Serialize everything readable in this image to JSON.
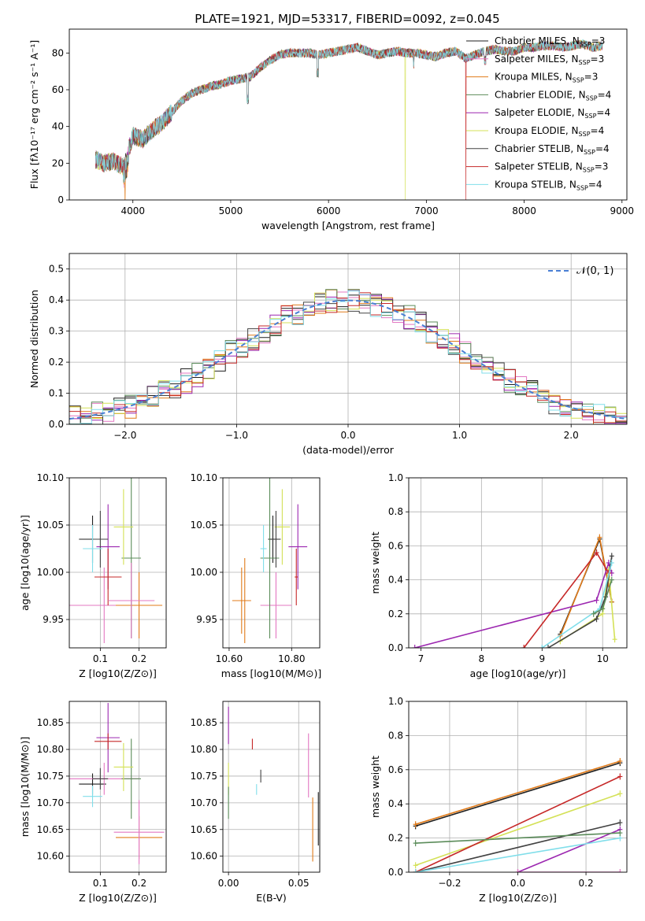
{
  "title": "PLATE=1921, MJD=53317, FIBERID=0092, z=0.045",
  "series_colors": [
    "#1f1f1f",
    "#e377c2",
    "#e07b1a",
    "#2e7d32",
    "#9c27b0",
    "#d4e157",
    "#424242",
    "#c62828",
    "#80deea"
  ],
  "legend": [
    {
      "pre": "Chabrier MILES, N",
      "sub": "SSP",
      "post": "=3",
      "color": "#1f1f1f"
    },
    {
      "pre": "Salpeter MILES, N",
      "sub": "SSP",
      "post": "=3",
      "color": "#e377c2"
    },
    {
      "pre": "Kroupa MILES, N",
      "sub": "SSP",
      "post": "=3",
      "color": "#e07b1a"
    },
    {
      "pre": "Chabrier ELODIE, N",
      "sub": "SSP",
      "post": "=4",
      "color": "#5b8c5a"
    },
    {
      "pre": "Salpeter ELODIE, N",
      "sub": "SSP",
      "post": "=4",
      "color": "#9c27b0"
    },
    {
      "pre": "Kroupa ELODIE, N",
      "sub": "SSP",
      "post": "=4",
      "color": "#d4e157"
    },
    {
      "pre": "Chabrier STELIB, N",
      "sub": "SSP",
      "post": "=4",
      "color": "#424242"
    },
    {
      "pre": "Salpeter STELIB, N",
      "sub": "SSP",
      "post": "=3",
      "color": "#c62828"
    },
    {
      "pre": "Kroupa STELIB, N",
      "sub": "SSP",
      "post": "=4",
      "color": "#80deea"
    }
  ],
  "chart_data": [
    {
      "id": "spectrum",
      "type": "line",
      "xlabel": "wavelength [Angstrom, rest frame]",
      "ylabel": "Flux [fλ10⁻¹⁷ erg cm⁻² s⁻¹ A⁻¹]",
      "xlim": [
        3350,
        9050
      ],
      "ylim": [
        0,
        93
      ],
      "xticks": [
        4000,
        5000,
        6000,
        7000,
        8000,
        9000
      ],
      "yticks": [
        0,
        20,
        40,
        60,
        80
      ],
      "x": [
        3620,
        3700,
        3800,
        3900,
        4000,
        4100,
        4200,
        4300,
        4400,
        4500,
        4600,
        4700,
        4800,
        4900,
        5000,
        5100,
        5200,
        5300,
        5400,
        5500,
        5600,
        5700,
        5800,
        5900,
        6000,
        6100,
        6200,
        6300,
        6400,
        6500,
        6600,
        6700,
        6800,
        6900,
        7000,
        7100,
        7200,
        7300,
        7400,
        7500,
        7600,
        7700,
        7800,
        7900,
        8000,
        8100,
        8200,
        8300,
        8400,
        8500,
        8600,
        8700,
        8800
      ],
      "y": [
        22,
        20,
        21,
        18,
        35,
        33,
        38,
        42,
        48,
        54,
        58,
        60,
        62,
        63,
        65,
        66,
        67,
        72,
        76,
        79,
        80,
        80,
        80,
        79,
        80,
        81,
        82,
        83,
        81,
        79,
        80,
        81,
        80,
        80,
        79,
        78,
        80,
        81,
        77,
        79,
        81,
        82,
        81,
        81,
        83,
        83,
        84,
        84,
        83,
        84,
        85,
        83,
        84
      ],
      "dips": [
        {
          "x": 3920,
          "series": "Kroupa MILES"
        },
        {
          "x": 6785,
          "series": "Kroupa ELODIE"
        },
        {
          "x": 7405,
          "series": "Salpeter STELIB"
        }
      ]
    },
    {
      "id": "residuals",
      "type": "histogram",
      "xlabel": "(data-model)/error",
      "ylabel": "Normed distribution",
      "xlim": [
        -2.5,
        2.5
      ],
      "ylim": [
        0,
        0.55
      ],
      "xticks": [
        -2,
        -1,
        0,
        1,
        2
      ],
      "yticks": [
        0.0,
        0.1,
        0.2,
        0.3,
        0.4,
        0.5
      ],
      "reference": "N(0,1)",
      "legend": "𝒩(0, 1)",
      "bin_width": 0.1
    },
    {
      "id": "age_vs_Z",
      "type": "errorbar",
      "xlabel": "Z [log10(Z/Z⊙)]",
      "ylabel": "age  [log10(age/yr)]",
      "xlim": [
        0.02,
        0.27
      ],
      "ylim": [
        9.92,
        10.1
      ],
      "xticks": [
        0.1,
        0.2
      ],
      "yticks": [
        9.95,
        10.0,
        10.05,
        10.1
      ],
      "points": [
        {
          "x": 0.08,
          "y": 10.035,
          "xe": 0.035,
          "ye": 0.025,
          "series": "Chabrier MILES"
        },
        {
          "x": 0.11,
          "y": 9.965,
          "xe": 0.09,
          "ye": 0.04,
          "series": "Salpeter MILES"
        },
        {
          "x": 0.2,
          "y": 9.965,
          "xe": 0.06,
          "ye": 0.035,
          "series": "Kroupa MILES"
        },
        {
          "x": 0.18,
          "y": 10.015,
          "xe": 0.025,
          "ye": 0.085,
          "series": "Chabrier ELODIE"
        },
        {
          "x": 0.12,
          "y": 10.027,
          "xe": 0.03,
          "ye": 0.045,
          "series": "Salpeter ELODIE"
        },
        {
          "x": 0.16,
          "y": 10.048,
          "xe": 0.025,
          "ye": 0.04,
          "series": "Kroupa ELODIE"
        },
        {
          "x": 0.1,
          "y": 10.035,
          "xe": 0.02,
          "ye": 0.03,
          "series": "Chabrier STELIB"
        },
        {
          "x": 0.12,
          "y": 9.995,
          "xe": 0.035,
          "ye": 0.03,
          "series": "Salpeter STELIB"
        },
        {
          "x": 0.08,
          "y": 10.025,
          "xe": 0.025,
          "ye": 0.025,
          "series": "Kroupa STELIB"
        },
        {
          "x": 0.18,
          "y": 9.97,
          "xe": 0.06,
          "ye": 0.04,
          "series": "Salpeter MILES"
        }
      ]
    },
    {
      "id": "age_vs_mass",
      "type": "errorbar",
      "xlabel": "mass [log10(M/M⊙)]",
      "ylabel": "",
      "xlim": [
        10.58,
        10.89
      ],
      "ylim": [
        9.92,
        10.1
      ],
      "xticks": [
        10.6,
        10.8
      ],
      "yticks": [
        9.95,
        10.0,
        10.05,
        10.1
      ],
      "points": [
        {
          "x": 10.74,
          "y": 10.035,
          "xe": 0.015,
          "ye": 0.025,
          "series": "Chabrier MILES"
        },
        {
          "x": 10.75,
          "y": 9.965,
          "xe": 0.05,
          "ye": 0.035,
          "series": "Salpeter MILES"
        },
        {
          "x": 10.64,
          "y": 9.97,
          "xe": 0.03,
          "ye": 0.035,
          "series": "Kroupa MILES"
        },
        {
          "x": 10.73,
          "y": 10.015,
          "xe": 0.03,
          "ye": 0.085,
          "series": "Chabrier ELODIE"
        },
        {
          "x": 10.82,
          "y": 10.027,
          "xe": 0.03,
          "ye": 0.045,
          "series": "Salpeter ELODIE"
        },
        {
          "x": 10.77,
          "y": 10.048,
          "xe": 0.025,
          "ye": 0.04,
          "series": "Kroupa ELODIE"
        },
        {
          "x": 10.75,
          "y": 10.035,
          "xe": 0.015,
          "ye": 0.03,
          "series": "Chabrier STELIB"
        },
        {
          "x": 10.815,
          "y": 9.995,
          "xe": 0.005,
          "ye": 0.03,
          "series": "Salpeter STELIB"
        },
        {
          "x": 10.71,
          "y": 10.025,
          "xe": 0.01,
          "ye": 0.025,
          "series": "Kroupa STELIB"
        },
        {
          "x": 10.65,
          "y": 9.97,
          "xe": 0.02,
          "ye": 0.045,
          "series": "Kroupa MILES"
        }
      ]
    },
    {
      "id": "weight_vs_age",
      "type": "line",
      "xlabel": "age  [log10(age/yr)]",
      "ylabel": "mass weight",
      "xlim": [
        6.8,
        10.4
      ],
      "ylim": [
        0,
        1
      ],
      "xticks": [
        7,
        8,
        9,
        10
      ],
      "yticks": [
        0.0,
        0.2,
        0.4,
        0.6,
        0.8,
        1.0
      ],
      "series": [
        {
          "name": "Chabrier MILES",
          "x": [
            9.3,
            9.95,
            10.15
          ],
          "y": [
            0.08,
            0.64,
            0.27
          ]
        },
        {
          "name": "Kroupa MILES",
          "x": [
            9.3,
            9.95,
            10.15
          ],
          "y": [
            0.07,
            0.65,
            0.27
          ]
        },
        {
          "name": "Salpeter ELODIE",
          "x": [
            6.9,
            9.9,
            10.1,
            10.15
          ],
          "y": [
            0.0,
            0.28,
            0.5,
            0.44
          ]
        },
        {
          "name": "Kroupa ELODIE",
          "x": [
            9.3,
            10.0,
            10.1,
            10.2
          ],
          "y": [
            0.04,
            0.2,
            0.46,
            0.05
          ]
        },
        {
          "name": "Chabrier STELIB",
          "x": [
            9.1,
            9.9,
            10.05,
            10.15
          ],
          "y": [
            0.0,
            0.17,
            0.3,
            0.54
          ]
        },
        {
          "name": "Salpeter STELIB",
          "x": [
            8.7,
            9.9,
            10.1
          ],
          "y": [
            0.0,
            0.56,
            0.44
          ]
        },
        {
          "name": "Kroupa STELIB",
          "x": [
            9.0,
            9.95,
            10.15
          ],
          "y": [
            0.0,
            0.23,
            0.5
          ]
        },
        {
          "name": "Chabrier ELODIE",
          "x": [
            9.85,
            10.0,
            10.15
          ],
          "y": [
            0.2,
            0.23,
            0.4
          ]
        }
      ]
    },
    {
      "id": "mass_vs_Z",
      "type": "errorbar",
      "xlabel": "Z [log10(Z/Z⊙)]",
      "ylabel": "mass [log10(M/M⊙)]",
      "xlim": [
        0.02,
        0.27
      ],
      "ylim": [
        10.57,
        10.89
      ],
      "xticks": [
        0.1,
        0.2
      ],
      "yticks": [
        10.6,
        10.65,
        10.7,
        10.75,
        10.8,
        10.85
      ],
      "points": [
        {
          "x": 0.08,
          "y": 10.735,
          "xe": 0.035,
          "ye": 0.02,
          "series": "Chabrier MILES"
        },
        {
          "x": 0.11,
          "y": 10.745,
          "xe": 0.09,
          "ye": 0.03,
          "series": "Salpeter MILES"
        },
        {
          "x": 0.2,
          "y": 10.635,
          "xe": 0.06,
          "ye": 0.04,
          "series": "Kroupa MILES"
        },
        {
          "x": 0.18,
          "y": 10.745,
          "xe": 0.025,
          "ye": 0.075,
          "series": "Chabrier ELODIE"
        },
        {
          "x": 0.12,
          "y": 10.822,
          "xe": 0.03,
          "ye": 0.065,
          "series": "Salpeter ELODIE"
        },
        {
          "x": 0.16,
          "y": 10.767,
          "xe": 0.025,
          "ye": 0.045,
          "series": "Kroupa ELODIE"
        },
        {
          "x": 0.1,
          "y": 10.745,
          "xe": 0.02,
          "ye": 0.02,
          "series": "Chabrier STELIB"
        },
        {
          "x": 0.12,
          "y": 10.815,
          "xe": 0.035,
          "ye": 0.015,
          "series": "Salpeter STELIB"
        },
        {
          "x": 0.08,
          "y": 10.712,
          "xe": 0.025,
          "ye": 0.02,
          "series": "Kroupa STELIB"
        },
        {
          "x": 0.2,
          "y": 10.645,
          "xe": 0.065,
          "ye": 0.06,
          "series": "Salpeter MILES"
        }
      ]
    },
    {
      "id": "mass_vs_ebv",
      "type": "errorbar",
      "xlabel": "E(B-V)",
      "ylabel": "",
      "xlim": [
        -0.004,
        0.065
      ],
      "ylim": [
        10.57,
        10.89
      ],
      "xticks": [
        0.0,
        0.05
      ],
      "yticks": [
        10.6,
        10.65,
        10.7,
        10.75,
        10.8,
        10.85
      ],
      "points": [
        {
          "x": 0.0,
          "y": 10.845,
          "xe": 0,
          "ye": 0.035,
          "series": "Salpeter ELODIE"
        },
        {
          "x": 0.0,
          "y": 10.745,
          "xe": 0,
          "ye": 0.03,
          "series": "Kroupa ELODIE"
        },
        {
          "x": 0.0,
          "y": 10.7,
          "xe": 0,
          "ye": 0.03,
          "series": "Chabrier ELODIE"
        },
        {
          "x": 0.017,
          "y": 10.81,
          "xe": 0,
          "ye": 0.01,
          "series": "Salpeter STELIB"
        },
        {
          "x": 0.02,
          "y": 10.725,
          "xe": 0,
          "ye": 0.01,
          "series": "Kroupa STELIB"
        },
        {
          "x": 0.023,
          "y": 10.75,
          "xe": 0,
          "ye": 0.012,
          "series": "Chabrier STELIB"
        },
        {
          "x": 0.057,
          "y": 10.77,
          "xe": 0,
          "ye": 0.06,
          "series": "Salpeter MILES"
        },
        {
          "x": 0.06,
          "y": 10.65,
          "xe": 0,
          "ye": 0.06,
          "series": "Kroupa MILES"
        },
        {
          "x": 0.064,
          "y": 10.67,
          "xe": 0,
          "ye": 0.05,
          "series": "Chabrier MILES"
        }
      ]
    },
    {
      "id": "weight_vs_Z",
      "type": "line",
      "xlabel": "Z [log10(Z/Z⊙)]",
      "ylabel": "mass weight",
      "xlim": [
        -0.32,
        0.32
      ],
      "ylim": [
        0,
        1
      ],
      "xticks": [
        -0.2,
        0.0,
        0.2
      ],
      "yticks": [
        0.0,
        0.2,
        0.4,
        0.6,
        0.8,
        1.0
      ],
      "series": [
        {
          "name": "Chabrier MILES",
          "x": [
            -0.3,
            0.3
          ],
          "y": [
            0.27,
            0.64
          ]
        },
        {
          "name": "Kroupa MILES",
          "x": [
            -0.3,
            0.3
          ],
          "y": [
            0.28,
            0.65
          ]
        },
        {
          "name": "Salpeter ELODIE",
          "x": [
            0.0,
            0.3
          ],
          "y": [
            0.0,
            0.25
          ]
        },
        {
          "name": "Kroupa ELODIE",
          "x": [
            -0.3,
            0.3
          ],
          "y": [
            0.04,
            0.46
          ]
        },
        {
          "name": "Chabrier STELIB",
          "x": [
            -0.3,
            0.3
          ],
          "y": [
            0.0,
            0.29
          ]
        },
        {
          "name": "Salpeter STELIB",
          "x": [
            -0.3,
            0.3
          ],
          "y": [
            0.0,
            0.56
          ]
        },
        {
          "name": "Kroupa STELIB",
          "x": [
            -0.3,
            0.3
          ],
          "y": [
            0.0,
            0.2
          ]
        },
        {
          "name": "Chabrier ELODIE",
          "x": [
            -0.3,
            0.3
          ],
          "y": [
            0.17,
            0.23
          ]
        },
        {
          "name": "Salpeter MILES",
          "x": [
            0.0,
            0.3
          ],
          "y": [
            0.0,
            0.0
          ]
        }
      ]
    }
  ]
}
